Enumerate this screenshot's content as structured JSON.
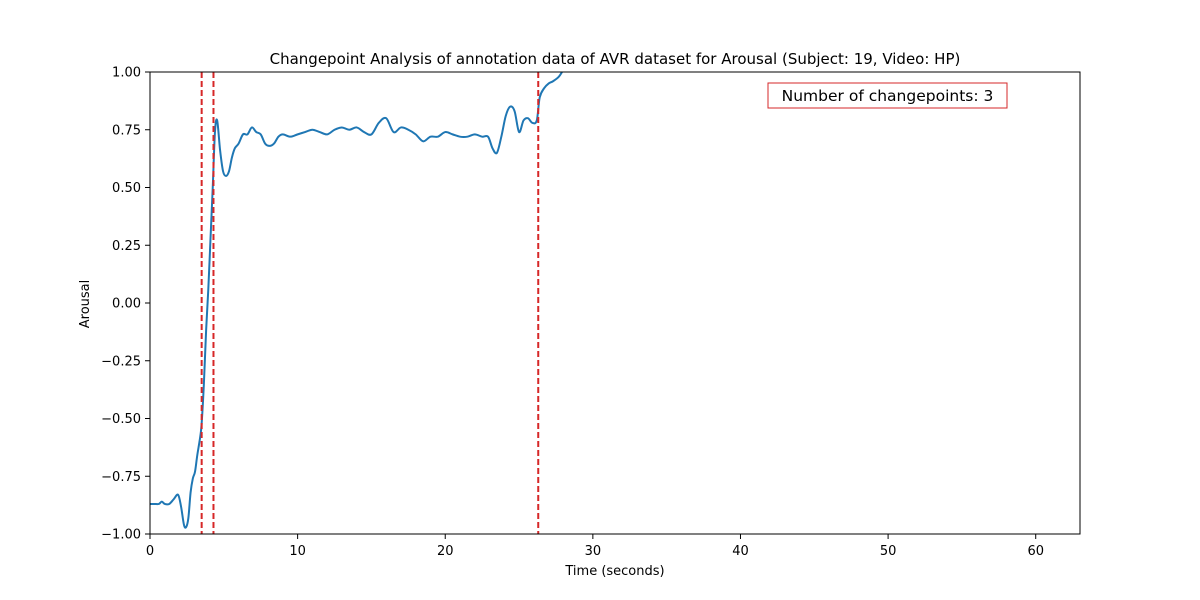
{
  "chart_data": {
    "type": "line",
    "title": "Changepoint Analysis of annotation data of AVR dataset for Arousal (Subject: 19, Video: HP)",
    "xlabel": "Time (seconds)",
    "ylabel": "Arousal",
    "xlim": [
      0,
      63
    ],
    "ylim": [
      -1.0,
      1.0
    ],
    "xticks": [
      0,
      10,
      20,
      30,
      40,
      50,
      60
    ],
    "xtick_labels": [
      "0",
      "10",
      "20",
      "30",
      "40",
      "50",
      "60"
    ],
    "yticks": [
      -1.0,
      -0.75,
      -0.5,
      -0.25,
      0.0,
      0.25,
      0.5,
      0.75,
      1.0
    ],
    "ytick_labels": [
      "−1.00",
      "−0.75",
      "−0.50",
      "−0.25",
      "0.00",
      "0.25",
      "0.50",
      "0.75",
      "1.00"
    ],
    "grid": false,
    "series": [
      {
        "color": "#1f77b4",
        "x": [
          0.0,
          0.3,
          0.6,
          0.8,
          1.0,
          1.3,
          1.6,
          1.9,
          2.1,
          2.3,
          2.45,
          2.6,
          2.75,
          2.9,
          3.05,
          3.2,
          3.4,
          3.5,
          3.65,
          3.8,
          3.95,
          4.1,
          4.25,
          4.4,
          4.55,
          4.75,
          4.95,
          5.15,
          5.35,
          5.55,
          5.75,
          6.0,
          6.3,
          6.6,
          6.9,
          7.2,
          7.5,
          7.8,
          8.1,
          8.4,
          8.7,
          9.0,
          9.5,
          10.0,
          10.5,
          11.0,
          11.5,
          12.0,
          12.5,
          13.0,
          13.5,
          14.0,
          14.5,
          15.0,
          15.5,
          16.0,
          16.5,
          17.0,
          17.5,
          18.0,
          18.5,
          19.0,
          19.5,
          20.0,
          20.5,
          21.0,
          21.5,
          22.0,
          22.5,
          22.9,
          23.2,
          23.5,
          23.8,
          24.1,
          24.4,
          24.7,
          25.0,
          25.3,
          25.6,
          25.9,
          26.2,
          26.4,
          26.7,
          27.0,
          27.3,
          27.7,
          28.0
        ],
        "y": [
          -0.87,
          -0.87,
          -0.87,
          -0.86,
          -0.87,
          -0.87,
          -0.85,
          -0.83,
          -0.88,
          -0.96,
          -0.97,
          -0.93,
          -0.82,
          -0.76,
          -0.73,
          -0.66,
          -0.58,
          -0.52,
          -0.35,
          -0.12,
          0.06,
          0.28,
          0.5,
          0.74,
          0.79,
          0.66,
          0.57,
          0.55,
          0.57,
          0.63,
          0.67,
          0.69,
          0.73,
          0.73,
          0.76,
          0.74,
          0.73,
          0.69,
          0.68,
          0.69,
          0.72,
          0.73,
          0.72,
          0.73,
          0.74,
          0.75,
          0.74,
          0.73,
          0.75,
          0.76,
          0.75,
          0.76,
          0.74,
          0.73,
          0.78,
          0.8,
          0.74,
          0.76,
          0.75,
          0.73,
          0.7,
          0.72,
          0.72,
          0.74,
          0.73,
          0.72,
          0.72,
          0.73,
          0.72,
          0.72,
          0.67,
          0.65,
          0.72,
          0.81,
          0.85,
          0.83,
          0.74,
          0.79,
          0.8,
          0.78,
          0.79,
          0.89,
          0.93,
          0.95,
          0.96,
          0.98,
          1.01
        ]
      }
    ],
    "changepoints": [
      3.5,
      4.3,
      26.3
    ],
    "changepoint_color": "#d62728",
    "annotation": "Number of changepoints: 3",
    "annotation_color": "#d62728"
  }
}
